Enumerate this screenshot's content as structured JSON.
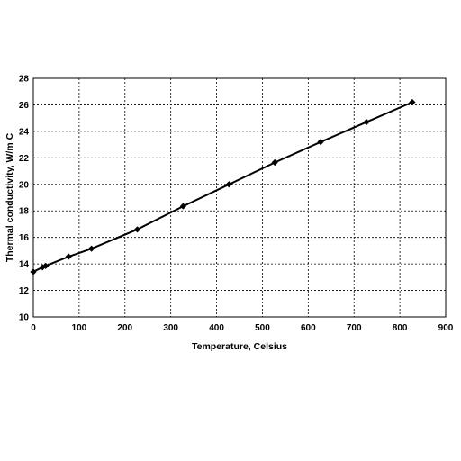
{
  "chart_data": {
    "type": "line",
    "title": "",
    "xlabel": "Temperature, Celsius",
    "ylabel": "Thermal conductivity, W/m C",
    "xlim": [
      0,
      900
    ],
    "ylim": [
      10,
      28
    ],
    "xticks": [
      0,
      100,
      200,
      300,
      400,
      500,
      600,
      700,
      800,
      900
    ],
    "yticks": [
      10,
      12,
      14,
      16,
      18,
      20,
      22,
      24,
      26,
      28
    ],
    "grid": true,
    "legend": "none",
    "series": [
      {
        "color": "#000000",
        "marker": "diamond",
        "x": [
          0,
          20,
          27,
          77,
          127,
          227,
          327,
          427,
          527,
          627,
          727,
          827
        ],
        "y": [
          13.4,
          13.75,
          13.85,
          14.55,
          15.15,
          16.6,
          18.35,
          20.0,
          21.65,
          23.2,
          24.7,
          26.2
        ]
      }
    ]
  }
}
